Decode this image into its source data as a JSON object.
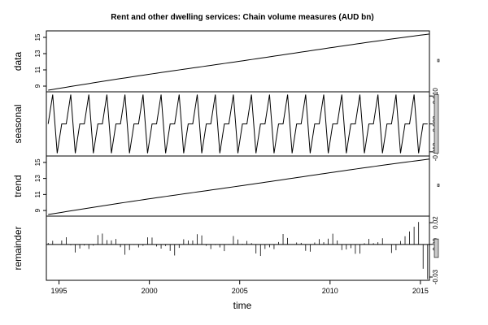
{
  "chart_data": {
    "type": "line",
    "title": "Rent and other dwelling services: Chain volume measures (AUD bn)",
    "xlabel": "time",
    "x_ticks": [
      1995,
      2000,
      2005,
      2010,
      2015
    ],
    "x_range": [
      1994.3,
      2015.5
    ],
    "panels": [
      {
        "name": "data",
        "ylabel": "data",
        "ylim": [
          8.3,
          15.8
        ],
        "yticks": [
          9,
          11,
          13,
          15
        ],
        "ytick_side": "left",
        "series": [
          {
            "kind": "line",
            "x_start": 1994.4,
            "x_end": 2015.5,
            "y_start": 8.5,
            "y_end": 15.4
          }
        ]
      },
      {
        "name": "seasonal",
        "ylabel": "seasonal",
        "ylim": [
          -0.0115,
          0.0115
        ],
        "yticks": [
          0.01,
          0.0,
          -0.01
        ],
        "ytick_labels": [
          "0.010",
          "0.000",
          "-0.010"
        ],
        "ytick_side": "right",
        "series": [
          {
            "kind": "seasonal",
            "x_start": 1994.4,
            "x_end": 2015.5,
            "amplitude": 0.0105,
            "values_by_quarter": [
              0.0,
              0.0105,
              -0.0105,
              0.0
            ]
          }
        ]
      },
      {
        "name": "trend",
        "ylabel": "trend",
        "ylim": [
          8.3,
          15.8
        ],
        "yticks": [
          9,
          11,
          13,
          15
        ],
        "ytick_side": "left",
        "series": [
          {
            "kind": "line",
            "x_start": 1994.4,
            "x_end": 2015.5,
            "y_start": 8.5,
            "y_end": 15.4
          }
        ]
      },
      {
        "name": "remainder",
        "ylabel": "remainder",
        "ylim": [
          -0.033,
          0.026
        ],
        "yticks": [
          0.02,
          0.0,
          -0.03
        ],
        "ytick_labels": [
          "0.02",
          "0.00",
          "-0.03"
        ],
        "ytick_side": "right",
        "series": [
          {
            "kind": "bars",
            "x_start": 1994.4,
            "x_end": 2015.5,
            "max": 0.022,
            "min": -0.032
          }
        ]
      }
    ],
    "colors": {
      "line": "#000000",
      "scalebar": "#c8c8c8"
    }
  }
}
